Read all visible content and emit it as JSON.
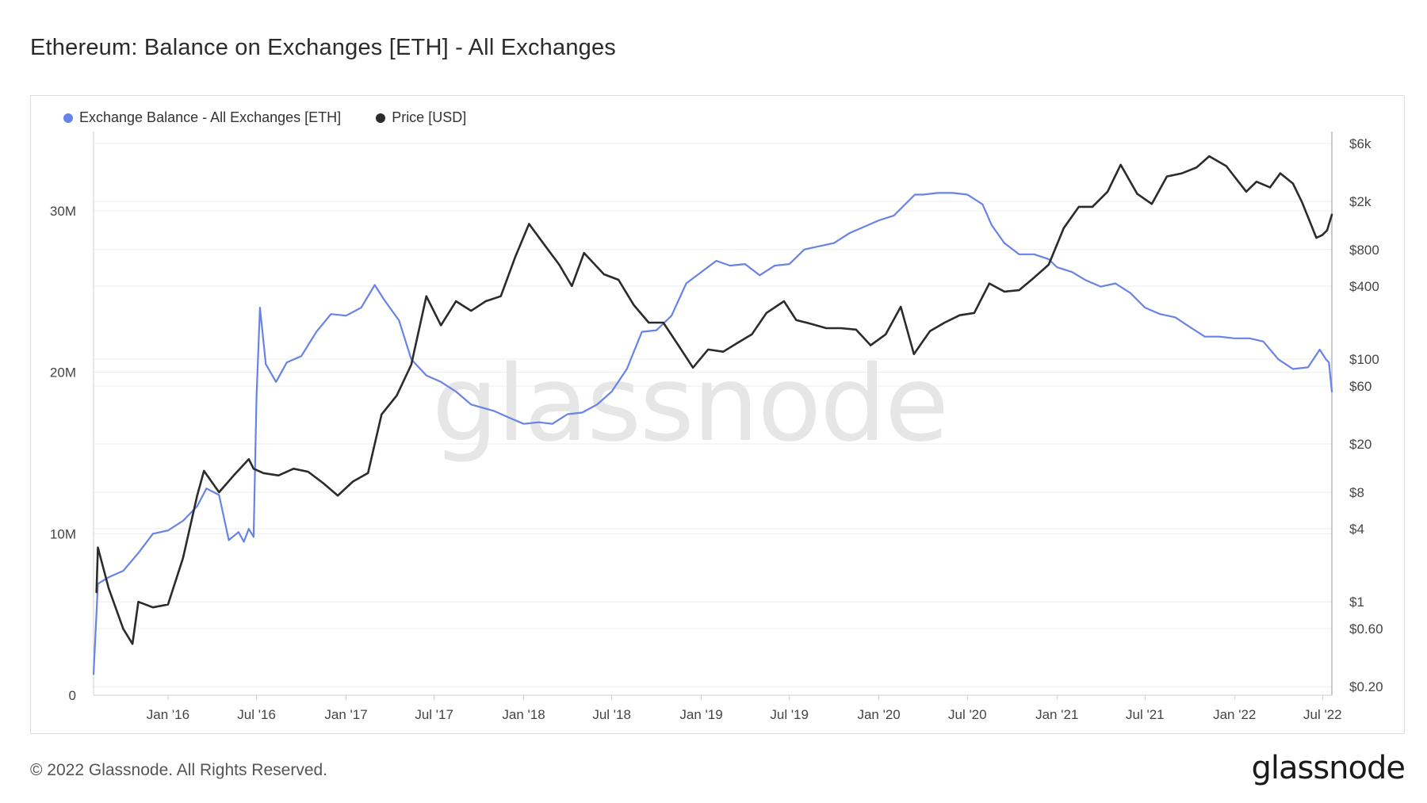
{
  "title": "Ethereum: Balance on Exchanges [ETH] - All Exchanges",
  "footer": {
    "copyright": "© 2022 Glassnode. All Rights Reserved.",
    "logo_text": "glassnode"
  },
  "watermark": "glassnode",
  "colors": {
    "balance": "#6883e7",
    "price": "#2b2b2b",
    "grid": "#eeeeee",
    "axis_text": "#444444"
  },
  "chart_data": {
    "type": "line",
    "title": "Ethereum: Balance on Exchanges [ETH] - All Exchanges",
    "legend": {
      "placement": "top-left"
    },
    "grid": true,
    "x_axis": {
      "type": "date",
      "range": [
        "2015-08-01",
        "2022-07-20"
      ],
      "ticks": [
        {
          "date": "2016-01-01",
          "label": "Jan '16"
        },
        {
          "date": "2016-07-01",
          "label": "Jul '16"
        },
        {
          "date": "2017-01-01",
          "label": "Jan '17"
        },
        {
          "date": "2017-07-01",
          "label": "Jul '17"
        },
        {
          "date": "2018-01-01",
          "label": "Jan '18"
        },
        {
          "date": "2018-07-01",
          "label": "Jul '18"
        },
        {
          "date": "2019-01-01",
          "label": "Jan '19"
        },
        {
          "date": "2019-07-01",
          "label": "Jul '19"
        },
        {
          "date": "2020-01-01",
          "label": "Jan '20"
        },
        {
          "date": "2020-07-01",
          "label": "Jul '20"
        },
        {
          "date": "2021-01-01",
          "label": "Jan '21"
        },
        {
          "date": "2021-07-01",
          "label": "Jul '21"
        },
        {
          "date": "2022-01-01",
          "label": "Jan '22"
        },
        {
          "date": "2022-07-01",
          "label": "Jul '22"
        }
      ]
    },
    "y_left": {
      "scale": "linear",
      "range": [
        0,
        34900000
      ],
      "ticks": [
        {
          "value": 0,
          "label": "0"
        },
        {
          "value": 10000000,
          "label": "10M"
        },
        {
          "value": 20000000,
          "label": "20M"
        },
        {
          "value": 30000000,
          "label": "30M"
        }
      ]
    },
    "y_right": {
      "scale": "log",
      "range": [
        0.17,
        7500
      ],
      "ticks": [
        {
          "value": 0.2,
          "label": "$0.20"
        },
        {
          "value": 0.6,
          "label": "$0.60"
        },
        {
          "value": 1,
          "label": "$1"
        },
        {
          "value": 4,
          "label": "$4"
        },
        {
          "value": 8,
          "label": "$8"
        },
        {
          "value": 20,
          "label": "$20"
        },
        {
          "value": 60,
          "label": "$60"
        },
        {
          "value": 100,
          "label": "$100"
        },
        {
          "value": 400,
          "label": "$400"
        },
        {
          "value": 800,
          "label": "$800"
        },
        {
          "value": 2000,
          "label": "$2k"
        },
        {
          "value": 6000,
          "label": "$6k"
        }
      ]
    },
    "series": [
      {
        "name": "Exchange Balance - All Exchanges [ETH]",
        "axis": "left",
        "points": [
          [
            "2015-08-01",
            1300000
          ],
          [
            "2015-08-10",
            6900000
          ],
          [
            "2015-09-01",
            7300000
          ],
          [
            "2015-10-01",
            7700000
          ],
          [
            "2015-11-01",
            8800000
          ],
          [
            "2015-12-01",
            10000000
          ],
          [
            "2016-01-01",
            10200000
          ],
          [
            "2016-02-01",
            10800000
          ],
          [
            "2016-03-01",
            11700000
          ],
          [
            "2016-03-20",
            12800000
          ],
          [
            "2016-04-15",
            12400000
          ],
          [
            "2016-05-05",
            9600000
          ],
          [
            "2016-05-25",
            10100000
          ],
          [
            "2016-06-05",
            9500000
          ],
          [
            "2016-06-15",
            10300000
          ],
          [
            "2016-06-25",
            9800000
          ],
          [
            "2016-07-01",
            18500000
          ],
          [
            "2016-07-08",
            24000000
          ],
          [
            "2016-07-20",
            20500000
          ],
          [
            "2016-08-10",
            19400000
          ],
          [
            "2016-09-01",
            20600000
          ],
          [
            "2016-10-01",
            21000000
          ],
          [
            "2016-11-01",
            22500000
          ],
          [
            "2016-12-01",
            23600000
          ],
          [
            "2017-01-01",
            23500000
          ],
          [
            "2017-02-01",
            24000000
          ],
          [
            "2017-03-01",
            25400000
          ],
          [
            "2017-03-20",
            24500000
          ],
          [
            "2017-04-20",
            23200000
          ],
          [
            "2017-05-15",
            20800000
          ],
          [
            "2017-06-15",
            19800000
          ],
          [
            "2017-07-15",
            19400000
          ],
          [
            "2017-08-15",
            18800000
          ],
          [
            "2017-09-15",
            18000000
          ],
          [
            "2017-11-01",
            17600000
          ],
          [
            "2017-12-01",
            17200000
          ],
          [
            "2018-01-01",
            16800000
          ],
          [
            "2018-02-01",
            16900000
          ],
          [
            "2018-03-01",
            16800000
          ],
          [
            "2018-04-01",
            17400000
          ],
          [
            "2018-05-01",
            17500000
          ],
          [
            "2018-06-01",
            18000000
          ],
          [
            "2018-07-01",
            18800000
          ],
          [
            "2018-08-01",
            20200000
          ],
          [
            "2018-09-01",
            22500000
          ],
          [
            "2018-10-01",
            22600000
          ],
          [
            "2018-11-01",
            23500000
          ],
          [
            "2018-12-01",
            25500000
          ],
          [
            "2019-01-01",
            26200000
          ],
          [
            "2019-02-01",
            26900000
          ],
          [
            "2019-03-01",
            26600000
          ],
          [
            "2019-04-01",
            26700000
          ],
          [
            "2019-05-01",
            26000000
          ],
          [
            "2019-06-01",
            26600000
          ],
          [
            "2019-07-01",
            26700000
          ],
          [
            "2019-08-01",
            27600000
          ],
          [
            "2019-09-01",
            27800000
          ],
          [
            "2019-10-01",
            28000000
          ],
          [
            "2019-11-01",
            28600000
          ],
          [
            "2019-12-01",
            29000000
          ],
          [
            "2020-01-01",
            29400000
          ],
          [
            "2020-02-01",
            29700000
          ],
          [
            "2020-03-15",
            31000000
          ],
          [
            "2020-04-01",
            31000000
          ],
          [
            "2020-05-01",
            31100000
          ],
          [
            "2020-06-01",
            31100000
          ],
          [
            "2020-07-01",
            31000000
          ],
          [
            "2020-08-01",
            30400000
          ],
          [
            "2020-08-20",
            29100000
          ],
          [
            "2020-09-15",
            28000000
          ],
          [
            "2020-10-15",
            27300000
          ],
          [
            "2020-11-15",
            27300000
          ],
          [
            "2020-12-15",
            27000000
          ],
          [
            "2021-01-01",
            26500000
          ],
          [
            "2021-02-01",
            26200000
          ],
          [
            "2021-03-01",
            25700000
          ],
          [
            "2021-04-01",
            25300000
          ],
          [
            "2021-05-01",
            25500000
          ],
          [
            "2021-06-01",
            24900000
          ],
          [
            "2021-07-01",
            24000000
          ],
          [
            "2021-08-01",
            23600000
          ],
          [
            "2021-09-01",
            23400000
          ],
          [
            "2021-10-01",
            22800000
          ],
          [
            "2021-11-01",
            22200000
          ],
          [
            "2021-12-01",
            22200000
          ],
          [
            "2022-01-01",
            22100000
          ],
          [
            "2022-02-01",
            22100000
          ],
          [
            "2022-03-01",
            21900000
          ],
          [
            "2022-04-01",
            20800000
          ],
          [
            "2022-05-01",
            20200000
          ],
          [
            "2022-06-01",
            20300000
          ],
          [
            "2022-06-25",
            21400000
          ],
          [
            "2022-07-08",
            20800000
          ],
          [
            "2022-07-14",
            20600000
          ],
          [
            "2022-07-20",
            18800000
          ]
        ]
      },
      {
        "name": "Price [USD]",
        "axis": "right",
        "points": [
          [
            "2015-08-07",
            1.2
          ],
          [
            "2015-08-10",
            2.8
          ],
          [
            "2015-09-01",
            1.3
          ],
          [
            "2015-10-01",
            0.6
          ],
          [
            "2015-10-20",
            0.45
          ],
          [
            "2015-11-01",
            1.0
          ],
          [
            "2015-12-01",
            0.9
          ],
          [
            "2016-01-01",
            0.95
          ],
          [
            "2016-02-01",
            2.3
          ],
          [
            "2016-03-01",
            7.5
          ],
          [
            "2016-03-15",
            12.0
          ],
          [
            "2016-04-15",
            8.0
          ],
          [
            "2016-05-15",
            11.0
          ],
          [
            "2016-06-15",
            15.0
          ],
          [
            "2016-06-25",
            12.5
          ],
          [
            "2016-07-15",
            11.5
          ],
          [
            "2016-08-15",
            11.0
          ],
          [
            "2016-09-15",
            12.5
          ],
          [
            "2016-10-15",
            11.8
          ],
          [
            "2016-11-15",
            9.5
          ],
          [
            "2016-12-15",
            7.5
          ],
          [
            "2017-01-15",
            9.8
          ],
          [
            "2017-02-15",
            11.5
          ],
          [
            "2017-03-15",
            35.0
          ],
          [
            "2017-04-15",
            50.0
          ],
          [
            "2017-05-15",
            90.0
          ],
          [
            "2017-06-15",
            330.0
          ],
          [
            "2017-07-15",
            190.0
          ],
          [
            "2017-08-15",
            300.0
          ],
          [
            "2017-09-15",
            250.0
          ],
          [
            "2017-10-15",
            300.0
          ],
          [
            "2017-11-15",
            330.0
          ],
          [
            "2017-12-15",
            700.0
          ],
          [
            "2018-01-12",
            1300.0
          ],
          [
            "2018-02-15",
            850.0
          ],
          [
            "2018-03-15",
            600.0
          ],
          [
            "2018-04-10",
            400.0
          ],
          [
            "2018-05-05",
            750.0
          ],
          [
            "2018-06-15",
            500.0
          ],
          [
            "2018-07-15",
            450.0
          ],
          [
            "2018-08-15",
            280.0
          ],
          [
            "2018-09-15",
            200.0
          ],
          [
            "2018-10-15",
            200.0
          ],
          [
            "2018-11-15",
            130.0
          ],
          [
            "2018-12-15",
            85.0
          ],
          [
            "2019-01-15",
            120.0
          ],
          [
            "2019-02-15",
            115.0
          ],
          [
            "2019-03-15",
            135.0
          ],
          [
            "2019-04-15",
            160.0
          ],
          [
            "2019-05-15",
            240.0
          ],
          [
            "2019-06-20",
            300.0
          ],
          [
            "2019-07-15",
            210.0
          ],
          [
            "2019-08-15",
            195.0
          ],
          [
            "2019-09-15",
            180.0
          ],
          [
            "2019-10-15",
            180.0
          ],
          [
            "2019-11-15",
            175.0
          ],
          [
            "2019-12-15",
            130.0
          ],
          [
            "2020-01-15",
            160.0
          ],
          [
            "2020-02-15",
            270.0
          ],
          [
            "2020-03-13",
            110.0
          ],
          [
            "2020-04-15",
            170.0
          ],
          [
            "2020-05-15",
            200.0
          ],
          [
            "2020-06-15",
            230.0
          ],
          [
            "2020-07-15",
            240.0
          ],
          [
            "2020-08-15",
            420.0
          ],
          [
            "2020-09-15",
            360.0
          ],
          [
            "2020-10-15",
            370.0
          ],
          [
            "2020-11-15",
            470.0
          ],
          [
            "2020-12-15",
            600.0
          ],
          [
            "2021-01-15",
            1200.0
          ],
          [
            "2021-02-15",
            1800.0
          ],
          [
            "2021-03-15",
            1800.0
          ],
          [
            "2021-04-15",
            2400.0
          ],
          [
            "2021-05-12",
            4000.0
          ],
          [
            "2021-06-15",
            2300.0
          ],
          [
            "2021-07-15",
            1900.0
          ],
          [
            "2021-08-15",
            3200.0
          ],
          [
            "2021-09-15",
            3400.0
          ],
          [
            "2021-10-15",
            3800.0
          ],
          [
            "2021-11-10",
            4700.0
          ],
          [
            "2021-12-15",
            3900.0
          ],
          [
            "2022-01-25",
            2400.0
          ],
          [
            "2022-02-15",
            2900.0
          ],
          [
            "2022-03-15",
            2600.0
          ],
          [
            "2022-04-05",
            3400.0
          ],
          [
            "2022-05-01",
            2800.0
          ],
          [
            "2022-05-20",
            1950.0
          ],
          [
            "2022-06-18",
            1000.0
          ],
          [
            "2022-06-30",
            1050.0
          ],
          [
            "2022-07-10",
            1150.0
          ],
          [
            "2022-07-20",
            1550.0
          ]
        ]
      }
    ]
  }
}
